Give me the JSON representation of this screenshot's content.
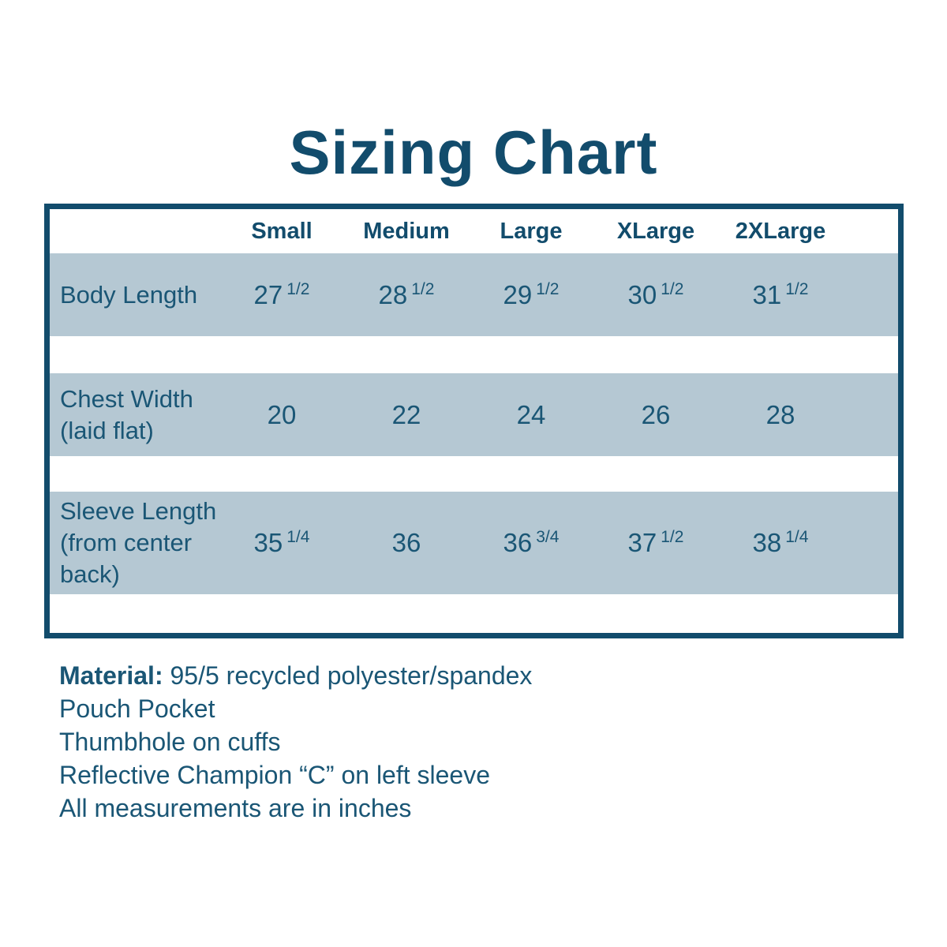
{
  "title": "Sizing Chart",
  "colors": {
    "accent": "#124c6c",
    "text": "#1a5675",
    "stripe": "#b5c8d3",
    "page_bg": "#ffffff"
  },
  "table": {
    "columns": [
      "Small",
      "Medium",
      "Large",
      "XLarge",
      "2XLarge"
    ],
    "rows": [
      {
        "label_lines": [
          "Body Length"
        ],
        "values": [
          {
            "whole": "27",
            "frac": "1/2"
          },
          {
            "whole": "28",
            "frac": "1/2"
          },
          {
            "whole": "29",
            "frac": "1/2"
          },
          {
            "whole": "30",
            "frac": "1/2"
          },
          {
            "whole": "31",
            "frac": "1/2"
          }
        ]
      },
      {
        "label_lines": [
          "Chest Width",
          "(laid flat)"
        ],
        "values": [
          {
            "whole": "20",
            "frac": ""
          },
          {
            "whole": "22",
            "frac": ""
          },
          {
            "whole": "24",
            "frac": ""
          },
          {
            "whole": "26",
            "frac": ""
          },
          {
            "whole": "28",
            "frac": ""
          }
        ]
      },
      {
        "label_lines": [
          "Sleeve Length",
          "(from center",
          "back)"
        ],
        "values": [
          {
            "whole": "35",
            "frac": "1/4"
          },
          {
            "whole": "36",
            "frac": ""
          },
          {
            "whole": "36",
            "frac": "3/4"
          },
          {
            "whole": "37",
            "frac": "1/2"
          },
          {
            "whole": "38",
            "frac": "1/4"
          }
        ]
      }
    ]
  },
  "notes": [
    {
      "prefix": "Material:",
      "text": " 95/5 recycled polyester/spandex"
    },
    {
      "prefix": "",
      "text": "Pouch Pocket"
    },
    {
      "prefix": "",
      "text": "Thumbhole on cuffs"
    },
    {
      "prefix": "",
      "text": "Reflective Champion “C” on left sleeve"
    },
    {
      "prefix": "",
      "text": "All measurements are in inches"
    }
  ]
}
